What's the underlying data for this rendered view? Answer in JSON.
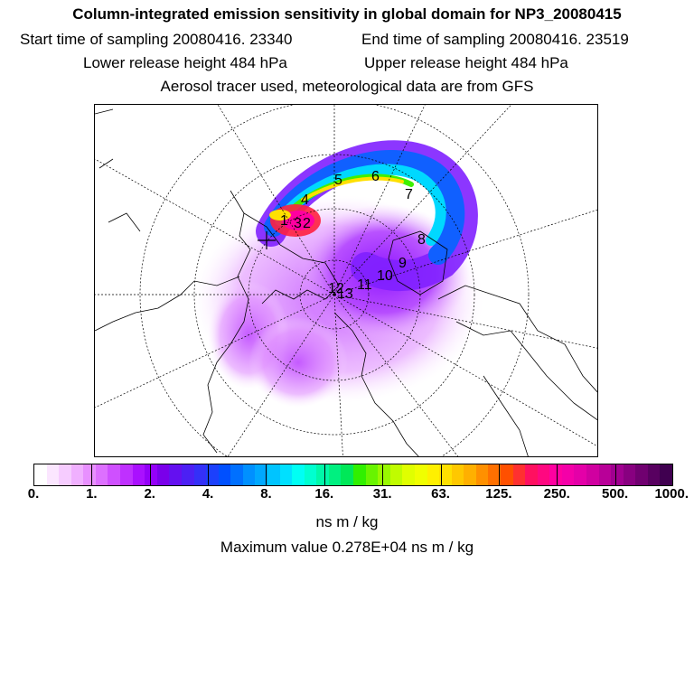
{
  "header": {
    "title": "Column-integrated emission sensitivity in global domain for NP3_20080415",
    "start_label": "Start time of sampling 20080416. 23340",
    "end_label": "End time of sampling 20080416. 23519",
    "lower_label": "Lower release height  484 hPa",
    "upper_label": "Upper release height  484 hPa",
    "tracer_label": "Aerosol tracer used, meteorological data are from GFS"
  },
  "chart_data": {
    "type": "heatmap",
    "projection": "north-polar-stereographic",
    "title": "Column-integrated emission sensitivity in global domain for NP3_20080415",
    "release_marker": "+",
    "trajectory_day_labels": [
      "1",
      "2",
      "3",
      "4",
      "5",
      "6",
      "7",
      "8",
      "9",
      "10",
      "11",
      "12",
      "13"
    ],
    "colorbar": {
      "unit": "ns m / kg",
      "scale": "logarithmic",
      "tick_labels": [
        "0.",
        "1.",
        "2.",
        "4.",
        "8.",
        "16.",
        "31.",
        "63.",
        "125.",
        "250.",
        "500.",
        "1000."
      ],
      "tick_values": [
        0,
        1,
        2,
        4,
        8,
        16,
        31,
        63,
        125,
        250,
        500,
        1000
      ],
      "colors": [
        "#ffffff",
        "#fbe6ff",
        "#f6ccff",
        "#f0b0ff",
        "#e890ff",
        "#dd70ff",
        "#cf50ff",
        "#bf30ff",
        "#aa10ff",
        "#9400f8",
        "#7a00ea",
        "#6410f0",
        "#4c20f4",
        "#3430f8",
        "#1c40fc",
        "#0050ff",
        "#0070ff",
        "#0090ff",
        "#00a8ff",
        "#00c4ff",
        "#00e0ff",
        "#00fff4",
        "#00ffd0",
        "#00f8a8",
        "#00f080",
        "#00e858",
        "#30f000",
        "#68f400",
        "#98f800",
        "#c0fc00",
        "#e0ff00",
        "#f0ff00",
        "#fff000",
        "#ffe000",
        "#ffc800",
        "#ffb000",
        "#ff9000",
        "#ff7000",
        "#ff5000",
        "#ff3030",
        "#ff1060",
        "#ff0880",
        "#ff00a0",
        "#f400a8",
        "#e400a8",
        "#d000a0",
        "#b80098",
        "#a00090",
        "#880080",
        "#700070",
        "#580060",
        "#400050"
      ]
    },
    "max_value_label": "Maximum value  0.278E+04 ns m / kg"
  }
}
